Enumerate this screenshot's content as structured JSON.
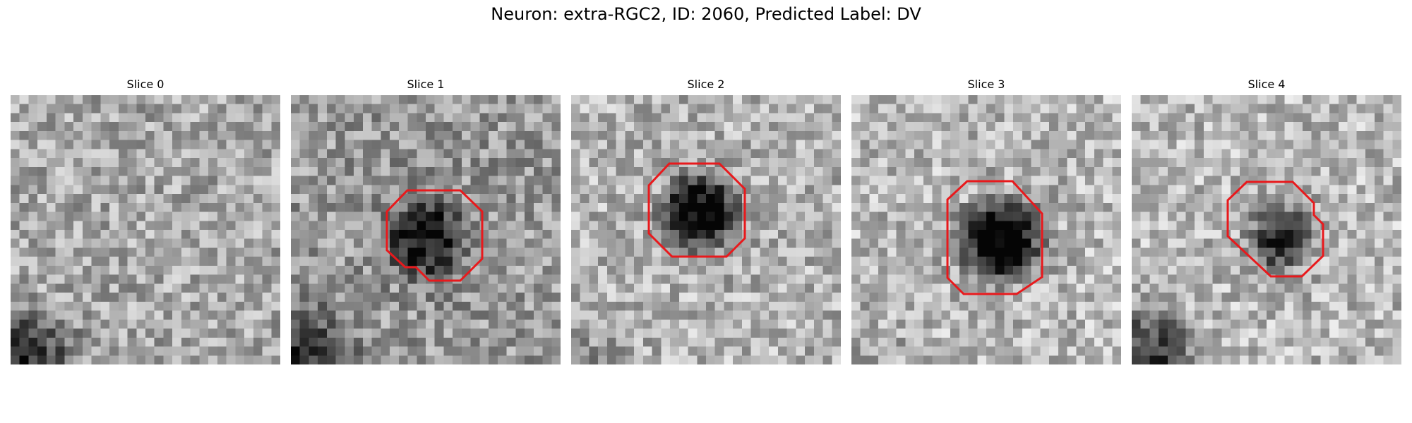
{
  "figure": {
    "title": "Neuron: extra-RGC2, ID: 2060, Predicted Label: DV"
  },
  "colors": {
    "contour": "#e8191c"
  },
  "slices": [
    {
      "label": "Slice 0",
      "has_contour": false
    },
    {
      "label": "Slice 1",
      "has_contour": true
    },
    {
      "label": "Slice 2",
      "has_contour": true
    },
    {
      "label": "Slice 3",
      "has_contour": true
    },
    {
      "label": "Slice 4",
      "has_contour": true
    }
  ]
}
